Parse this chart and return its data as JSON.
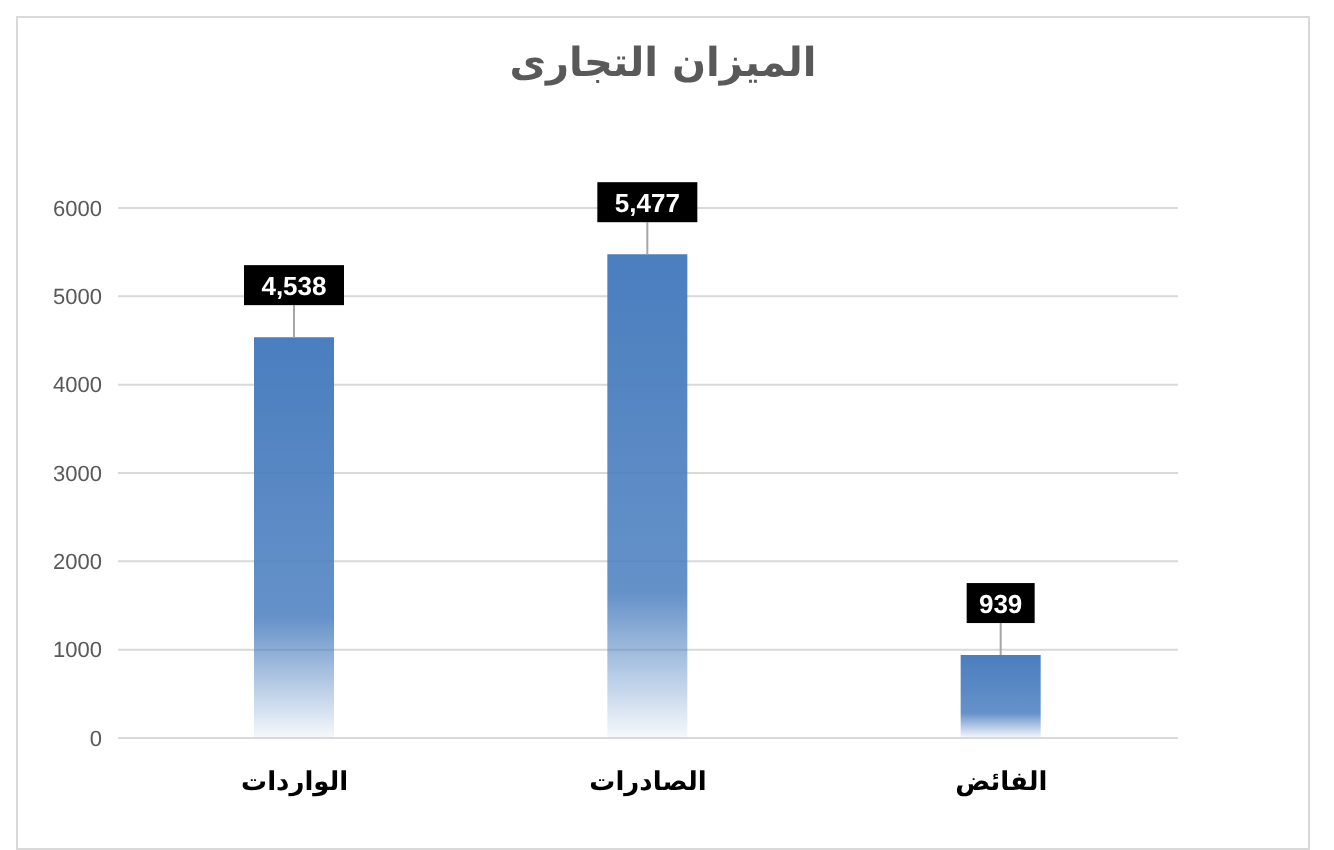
{
  "chart_data": {
    "type": "bar",
    "title": "الميزان التجارى",
    "categories": [
      "الواردات",
      "الصادرات",
      "الفائض"
    ],
    "values": [
      4538,
      5477,
      939
    ],
    "value_labels": [
      "4,538",
      "5,477",
      "939"
    ],
    "color": "#4a7ebf",
    "ylim": [
      0,
      6000
    ],
    "yticks": [
      0,
      1000,
      2000,
      3000,
      4000,
      5000,
      6000
    ],
    "grid": "y"
  }
}
